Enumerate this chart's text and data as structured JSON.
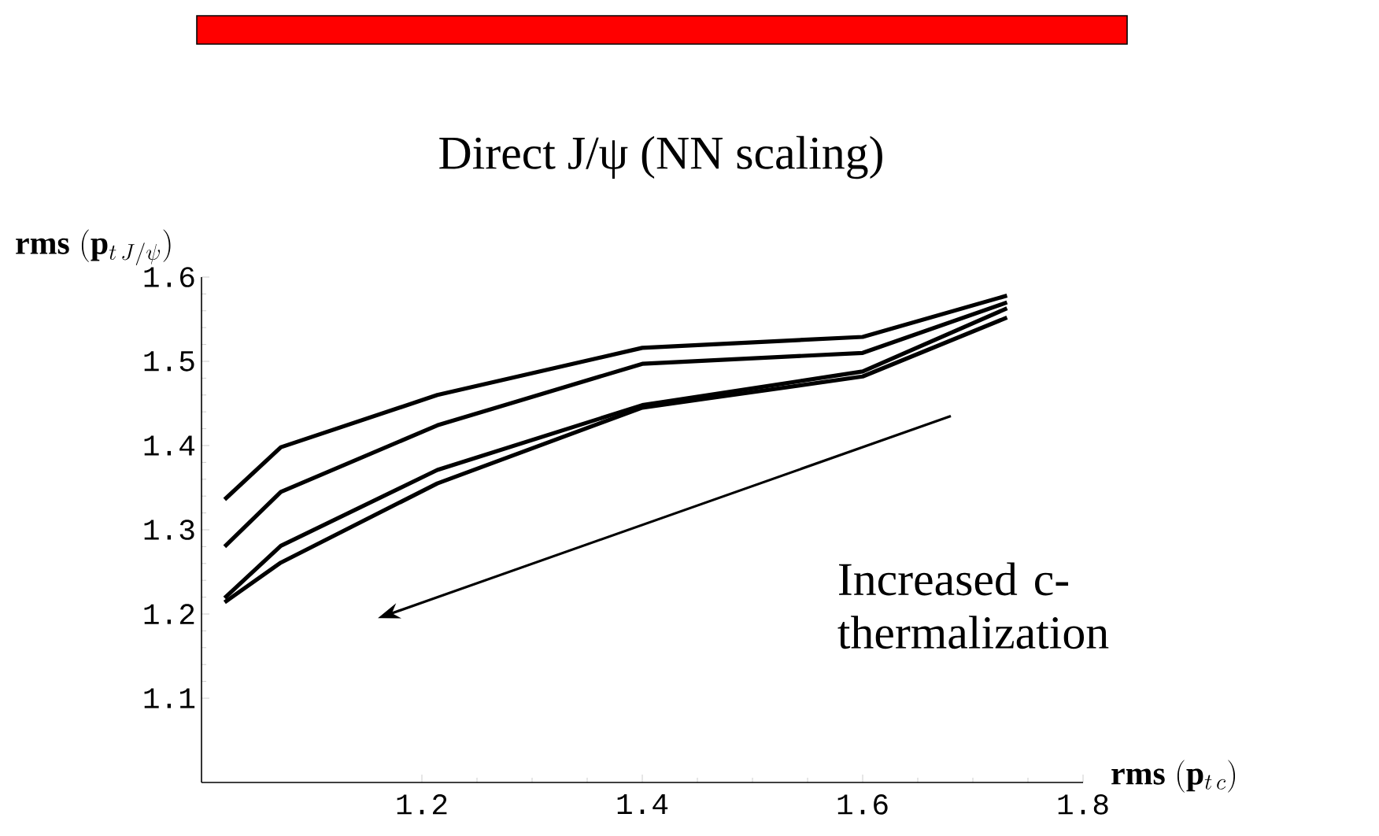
{
  "chart_data": {
    "type": "line",
    "title": "Direct J/ψ (NN scaling)",
    "xlabel": "\\mathbf{rms}\\;(\\mathbf{p}_{t\\,c})",
    "ylabel": "\\mathbf{rms}\\;(\\mathbf{p}_{t\\,J/\\psi})",
    "annotations": [
      "Increased c-thermalization"
    ],
    "x": [
      1.021,
      1.072,
      1.214,
      1.4,
      1.6,
      1.731
    ],
    "series": [
      {
        "color": "#000000",
        "values": [
          1.336,
          1.398,
          1.46,
          1.516,
          1.529,
          1.578
        ]
      },
      {
        "color": "#000000",
        "values": [
          1.28,
          1.345,
          1.424,
          1.497,
          1.51,
          1.57
        ]
      },
      {
        "color": "#000000",
        "values": [
          1.219,
          1.281,
          1.371,
          1.448,
          1.488,
          1.563
        ]
      },
      {
        "color": "#000000",
        "values": [
          1.214,
          1.261,
          1.355,
          1.445,
          1.482,
          1.552
        ]
      }
    ],
    "xlim": [
      1.0,
      1.8
    ],
    "ylim": [
      1.0,
      1.6
    ],
    "xticks": [
      1.2,
      1.4,
      1.6,
      1.8
    ],
    "yticks": [
      1.1,
      1.2,
      1.3,
      1.4,
      1.5,
      1.6
    ]
  }
}
